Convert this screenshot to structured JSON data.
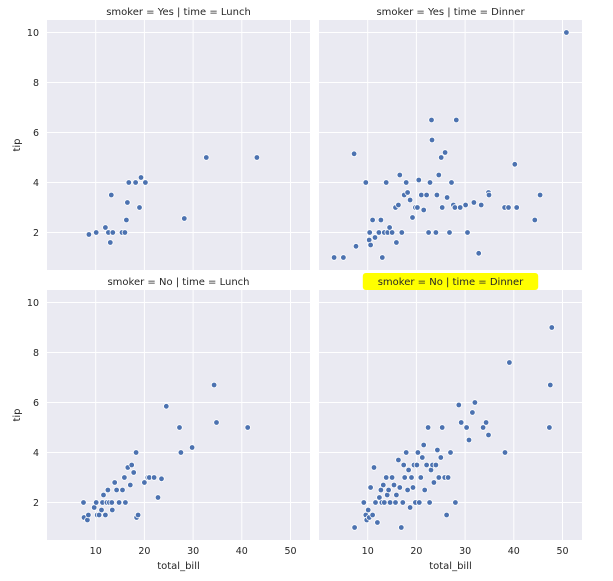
{
  "figure": {
    "background": "#ffffff",
    "panel_background": "#EAEAF2",
    "grid_color": "#ffffff",
    "point_color": "#4C72B0",
    "highlight_color": "#FFFF00"
  },
  "chart_data": [
    {
      "type": "scatter",
      "title": "smoker = Yes | time = Lunch",
      "xlabel": "",
      "ylabel": "tip",
      "xlim": [
        0,
        54
      ],
      "ylim": [
        0.5,
        10.5
      ],
      "x_ticks": [],
      "y_ticks": [
        "2",
        "4",
        "6",
        "8",
        "10"
      ],
      "grid": true,
      "highlighted_title": false,
      "points": [
        [
          8.6,
          1.92
        ],
        [
          10.1,
          2.0
        ],
        [
          12.0,
          2.2
        ],
        [
          12.6,
          2.0
        ],
        [
          13.0,
          1.6
        ],
        [
          13.2,
          3.5
        ],
        [
          13.5,
          2.0
        ],
        [
          15.4,
          2.0
        ],
        [
          16.0,
          2.0
        ],
        [
          16.3,
          2.5
        ],
        [
          16.5,
          3.2
        ],
        [
          16.8,
          4.0
        ],
        [
          18.2,
          4.0
        ],
        [
          19.0,
          3.0
        ],
        [
          19.3,
          4.2
        ],
        [
          20.2,
          4.0
        ],
        [
          28.2,
          2.56
        ],
        [
          32.7,
          5.0
        ],
        [
          43.1,
          5.0
        ]
      ]
    },
    {
      "type": "scatter",
      "title": "smoker = Yes | time = Dinner",
      "xlabel": "",
      "ylabel": "",
      "xlim": [
        0,
        54
      ],
      "ylim": [
        0.5,
        10.5
      ],
      "x_ticks": [],
      "y_ticks": [],
      "grid": true,
      "highlighted_title": false,
      "points": [
        [
          3.1,
          1.0
        ],
        [
          5.0,
          1.0
        ],
        [
          7.2,
          5.15
        ],
        [
          7.6,
          1.45
        ],
        [
          9.6,
          4.0
        ],
        [
          10.3,
          1.7
        ],
        [
          10.4,
          2.0
        ],
        [
          10.6,
          1.5
        ],
        [
          11.0,
          2.5
        ],
        [
          11.5,
          1.8
        ],
        [
          12.3,
          2.0
        ],
        [
          12.7,
          2.5
        ],
        [
          13.0,
          1.0
        ],
        [
          13.4,
          2.0
        ],
        [
          13.8,
          4.0
        ],
        [
          14.1,
          2.0
        ],
        [
          14.5,
          2.2
        ],
        [
          15.0,
          2.0
        ],
        [
          15.7,
          3.0
        ],
        [
          15.9,
          1.6
        ],
        [
          16.3,
          3.1
        ],
        [
          16.6,
          4.3
        ],
        [
          17.0,
          2.0
        ],
        [
          17.5,
          3.5
        ],
        [
          17.9,
          4.0
        ],
        [
          18.2,
          3.6
        ],
        [
          18.7,
          3.3
        ],
        [
          19.2,
          2.6
        ],
        [
          19.8,
          3.0
        ],
        [
          20.2,
          3.0
        ],
        [
          20.5,
          4.1
        ],
        [
          21.0,
          3.5
        ],
        [
          21.5,
          2.9
        ],
        [
          22.1,
          3.5
        ],
        [
          22.5,
          2.0
        ],
        [
          22.8,
          4.0
        ],
        [
          23.1,
          6.5
        ],
        [
          23.2,
          5.7
        ],
        [
          24.0,
          2.0
        ],
        [
          24.2,
          3.5
        ],
        [
          24.6,
          4.3
        ],
        [
          25.1,
          5.0
        ],
        [
          25.3,
          3.0
        ],
        [
          25.9,
          5.2
        ],
        [
          26.3,
          3.4
        ],
        [
          26.8,
          2.0
        ],
        [
          27.2,
          4.0
        ],
        [
          27.6,
          3.1
        ],
        [
          27.9,
          3.0
        ],
        [
          28.2,
          6.5
        ],
        [
          29.0,
          3.0
        ],
        [
          30.1,
          3.1
        ],
        [
          30.5,
          2.0
        ],
        [
          31.8,
          3.2
        ],
        [
          32.8,
          1.17
        ],
        [
          33.3,
          3.1
        ],
        [
          34.8,
          3.6
        ],
        [
          34.9,
          3.5
        ],
        [
          38.1,
          3.0
        ],
        [
          38.9,
          3.0
        ],
        [
          40.2,
          4.73
        ],
        [
          40.6,
          3.0
        ],
        [
          44.3,
          2.5
        ],
        [
          45.4,
          3.5
        ],
        [
          50.8,
          10.0
        ]
      ]
    },
    {
      "type": "scatter",
      "title": "smoker = No | time = Lunch",
      "xlabel": "total_bill",
      "ylabel": "tip",
      "xlim": [
        0,
        54
      ],
      "ylim": [
        0.5,
        10.5
      ],
      "x_ticks": [
        "10",
        "20",
        "30",
        "40",
        "50"
      ],
      "y_ticks": [
        "2",
        "4",
        "6",
        "8",
        "10"
      ],
      "grid": true,
      "highlighted_title": false,
      "points": [
        [
          7.5,
          2.0
        ],
        [
          7.6,
          1.4
        ],
        [
          8.3,
          1.3
        ],
        [
          8.5,
          1.5
        ],
        [
          9.7,
          1.8
        ],
        [
          10.1,
          2.0
        ],
        [
          10.3,
          1.5
        ],
        [
          10.7,
          1.5
        ],
        [
          11.2,
          1.7
        ],
        [
          11.4,
          2.0
        ],
        [
          11.6,
          2.3
        ],
        [
          12.0,
          1.5
        ],
        [
          12.3,
          2.0
        ],
        [
          12.5,
          2.5
        ],
        [
          12.8,
          2.0
        ],
        [
          13.3,
          2.0
        ],
        [
          13.4,
          1.7
        ],
        [
          13.9,
          2.8
        ],
        [
          14.3,
          2.5
        ],
        [
          14.8,
          2.0
        ],
        [
          15.5,
          2.5
        ],
        [
          15.9,
          3.0
        ],
        [
          16.1,
          2.0
        ],
        [
          16.6,
          3.4
        ],
        [
          17.1,
          2.7
        ],
        [
          17.4,
          3.5
        ],
        [
          17.8,
          3.2
        ],
        [
          18.3,
          4.0
        ],
        [
          18.4,
          1.4
        ],
        [
          18.7,
          1.5
        ],
        [
          20.0,
          2.8
        ],
        [
          20.7,
          3.0
        ],
        [
          21.0,
          3.0
        ],
        [
          22.0,
          3.0
        ],
        [
          22.8,
          2.2
        ],
        [
          23.5,
          2.95
        ],
        [
          24.5,
          5.85
        ],
        [
          27.2,
          5.0
        ],
        [
          27.5,
          4.0
        ],
        [
          29.8,
          4.2
        ],
        [
          34.3,
          6.7
        ],
        [
          34.8,
          5.2
        ],
        [
          41.2,
          5.0
        ]
      ]
    },
    {
      "type": "scatter",
      "title": "smoker = No | time = Dinner",
      "xlabel": "total_bill",
      "ylabel": "",
      "xlim": [
        0,
        54
      ],
      "ylim": [
        0.5,
        10.5
      ],
      "x_ticks": [
        "10",
        "20",
        "30",
        "40",
        "50"
      ],
      "y_ticks": [],
      "grid": true,
      "highlighted_title": true,
      "points": [
        [
          7.3,
          1.0
        ],
        [
          9.2,
          2.0
        ],
        [
          9.6,
          1.5
        ],
        [
          9.8,
          1.3
        ],
        [
          10.1,
          1.7
        ],
        [
          10.3,
          1.4
        ],
        [
          10.6,
          2.6
        ],
        [
          11.0,
          1.5
        ],
        [
          11.3,
          3.4
        ],
        [
          11.6,
          2.0
        ],
        [
          12.0,
          1.2
        ],
        [
          12.4,
          2.2
        ],
        [
          12.7,
          2.5
        ],
        [
          12.9,
          2.0
        ],
        [
          13.2,
          2.7
        ],
        [
          13.4,
          2.0
        ],
        [
          13.8,
          3.0
        ],
        [
          14.0,
          2.3
        ],
        [
          14.3,
          2.5
        ],
        [
          14.6,
          2.0
        ],
        [
          15.0,
          3.0
        ],
        [
          15.4,
          2.7
        ],
        [
          15.7,
          2.0
        ],
        [
          15.9,
          2.3
        ],
        [
          16.3,
          3.7
        ],
        [
          16.6,
          2.6
        ],
        [
          16.9,
          1.0
        ],
        [
          17.2,
          2.0
        ],
        [
          17.4,
          3.5
        ],
        [
          17.6,
          3.0
        ],
        [
          17.9,
          4.0
        ],
        [
          18.2,
          2.5
        ],
        [
          18.4,
          3.3
        ],
        [
          18.7,
          1.8
        ],
        [
          19.0,
          3.0
        ],
        [
          19.3,
          2.6
        ],
        [
          19.5,
          3.5
        ],
        [
          19.8,
          2.0
        ],
        [
          20.1,
          3.5
        ],
        [
          20.3,
          4.0
        ],
        [
          20.6,
          2.0
        ],
        [
          20.9,
          3.0
        ],
        [
          21.2,
          3.8
        ],
        [
          21.5,
          4.3
        ],
        [
          21.7,
          2.5
        ],
        [
          22.1,
          3.5
        ],
        [
          22.4,
          5.0
        ],
        [
          22.7,
          2.0
        ],
        [
          23.0,
          3.3
        ],
        [
          23.3,
          3.5
        ],
        [
          23.6,
          2.8
        ],
        [
          24.0,
          3.5
        ],
        [
          24.3,
          4.1
        ],
        [
          24.6,
          3.0
        ],
        [
          25.0,
          3.8
        ],
        [
          25.3,
          5.0
        ],
        [
          25.8,
          3.0
        ],
        [
          26.2,
          1.5
        ],
        [
          26.5,
          3.0
        ],
        [
          27.0,
          4.0
        ],
        [
          28.0,
          2.0
        ],
        [
          28.7,
          5.9
        ],
        [
          29.2,
          5.2
        ],
        [
          30.3,
          5.0
        ],
        [
          30.8,
          4.5
        ],
        [
          31.5,
          5.6
        ],
        [
          32.0,
          6.0
        ],
        [
          33.7,
          5.0
        ],
        [
          34.3,
          5.2
        ],
        [
          34.8,
          4.7
        ],
        [
          38.2,
          4.0
        ],
        [
          39.1,
          7.6
        ],
        [
          47.3,
          5.0
        ],
        [
          47.5,
          6.7
        ],
        [
          47.8,
          9.0
        ]
      ]
    }
  ]
}
